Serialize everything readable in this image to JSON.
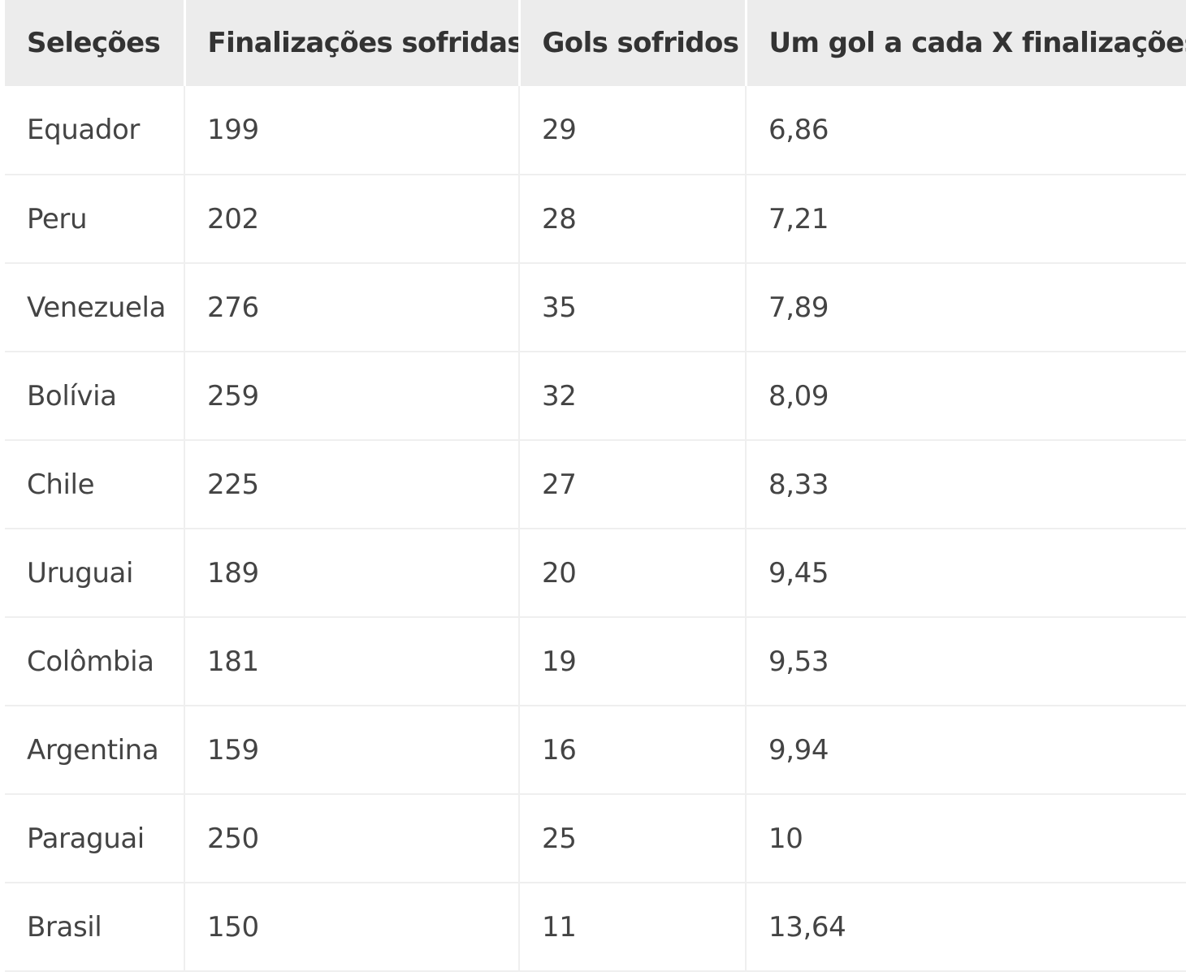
{
  "table": {
    "headers": [
      "Seleções",
      "Finalizações sofridas",
      "Gols sofridos",
      "Um gol a cada X finalizações"
    ],
    "rows": [
      [
        "Equador",
        "199",
        "29",
        "6,86"
      ],
      [
        "Peru",
        "202",
        "28",
        "7,21"
      ],
      [
        "Venezuela",
        "276",
        "35",
        "7,89"
      ],
      [
        "Bolívia",
        "259",
        "32",
        "8,09"
      ],
      [
        "Chile",
        "225",
        "27",
        "8,33"
      ],
      [
        "Uruguai",
        "189",
        "20",
        "9,45"
      ],
      [
        "Colômbia",
        "181",
        "19",
        "9,53"
      ],
      [
        "Argentina",
        "159",
        "16",
        "9,94"
      ],
      [
        "Paraguai",
        "250",
        "25",
        "10"
      ],
      [
        "Brasil",
        "150",
        "11",
        "13,64"
      ]
    ]
  }
}
